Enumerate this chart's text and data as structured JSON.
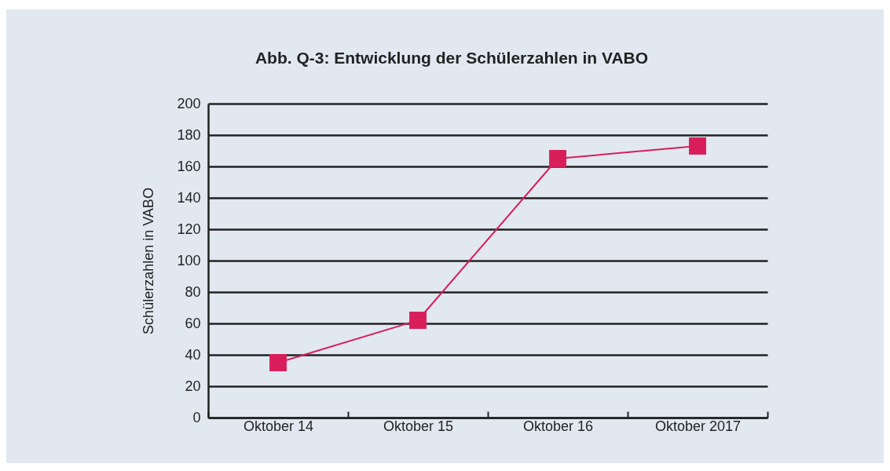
{
  "chart_data": {
    "type": "line",
    "title": "Abb. Q-3: Entwicklung der Schülerzahlen in VABO",
    "ylabel": "Schülerzahlen in VABO",
    "categories": [
      "Oktober 14",
      "Oktober 15",
      "Oktober 16",
      "Oktober 2017"
    ],
    "series": [
      {
        "color": "#d81e5b",
        "values": [
          35,
          62,
          165,
          173
        ]
      }
    ],
    "ylim": [
      0,
      200
    ],
    "yticks": [
      0,
      20,
      40,
      60,
      80,
      100,
      120,
      140,
      160,
      180,
      200
    ],
    "grid": "y",
    "marker": "square",
    "line_style": "solid"
  }
}
